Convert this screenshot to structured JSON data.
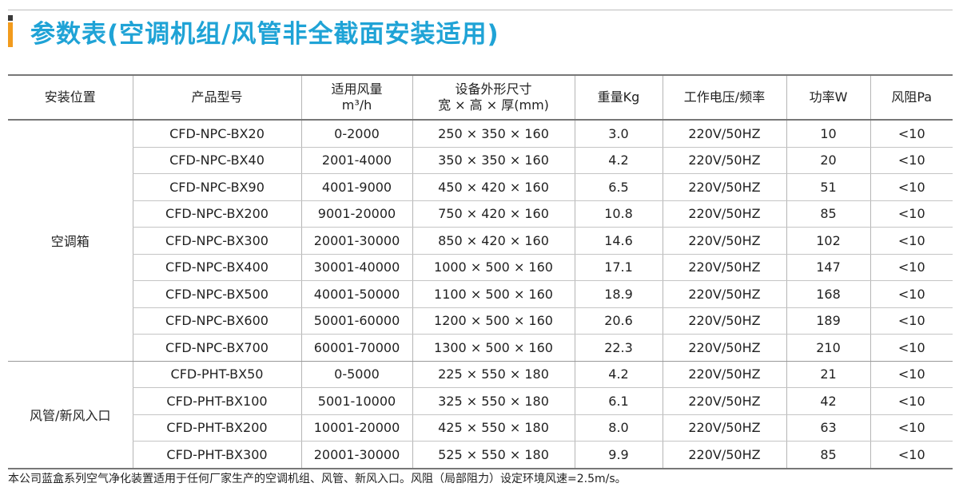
{
  "title": "参数表(空调机组/风管非全截面安装适用)",
  "colors": {
    "title": "#1fa3d6",
    "accent": "#f29b1d",
    "accent_dark": "#3a3a3a"
  },
  "table": {
    "headers": {
      "location": "安装位置",
      "model": "产品型号",
      "airflow_line1": "适用风量",
      "airflow_line2": "m³/h",
      "dimensions_line1": "设备外形尺寸",
      "dimensions_line2": "宽 × 高 × 厚(mm)",
      "weight": "重量Kg",
      "voltage": "工作电压/频率",
      "power": "功率W",
      "resistance": "风阻Pa"
    },
    "groups": [
      {
        "location": "空调箱",
        "rows": [
          {
            "model": "CFD-NPC-BX20",
            "airflow": "0-2000",
            "dimensions": "250 × 350 × 160",
            "weight": "3.0",
            "voltage": "220V/50HZ",
            "power": "10",
            "resistance": "<10"
          },
          {
            "model": "CFD-NPC-BX40",
            "airflow": "2001-4000",
            "dimensions": "350 × 350 × 160",
            "weight": "4.2",
            "voltage": "220V/50HZ",
            "power": "20",
            "resistance": "<10"
          },
          {
            "model": "CFD-NPC-BX90",
            "airflow": "4001-9000",
            "dimensions": "450 × 420 × 160",
            "weight": "6.5",
            "voltage": "220V/50HZ",
            "power": "51",
            "resistance": "<10"
          },
          {
            "model": "CFD-NPC-BX200",
            "airflow": "9001-20000",
            "dimensions": "750 × 420 × 160",
            "weight": "10.8",
            "voltage": "220V/50HZ",
            "power": "85",
            "resistance": "<10"
          },
          {
            "model": "CFD-NPC-BX300",
            "airflow": "20001-30000",
            "dimensions": "850 × 420 × 160",
            "weight": "14.6",
            "voltage": "220V/50HZ",
            "power": "102",
            "resistance": "<10"
          },
          {
            "model": "CFD-NPC-BX400",
            "airflow": "30001-40000",
            "dimensions": "1000 × 500 × 160",
            "weight": "17.1",
            "voltage": "220V/50HZ",
            "power": "147",
            "resistance": "<10"
          },
          {
            "model": "CFD-NPC-BX500",
            "airflow": "40001-50000",
            "dimensions": "1100 × 500 × 160",
            "weight": "18.9",
            "voltage": "220V/50HZ",
            "power": "168",
            "resistance": "<10"
          },
          {
            "model": "CFD-NPC-BX600",
            "airflow": "50001-60000",
            "dimensions": "1200 × 500 × 160",
            "weight": "20.6",
            "voltage": "220V/50HZ",
            "power": "189",
            "resistance": "<10"
          },
          {
            "model": "CFD-NPC-BX700",
            "airflow": "60001-70000",
            "dimensions": "1300 × 500 × 160",
            "weight": "22.3",
            "voltage": "220V/50HZ",
            "power": "210",
            "resistance": "<10"
          }
        ]
      },
      {
        "location": "风管/新风入口",
        "rows": [
          {
            "model": "CFD-PHT-BX50",
            "airflow": "0-5000",
            "dimensions": "225 × 550 × 180",
            "weight": "4.2",
            "voltage": "220V/50HZ",
            "power": "21",
            "resistance": "<10"
          },
          {
            "model": "CFD-PHT-BX100",
            "airflow": "5001-10000",
            "dimensions": "325 × 550 × 180",
            "weight": "6.1",
            "voltage": "220V/50HZ",
            "power": "42",
            "resistance": "<10"
          },
          {
            "model": "CFD-PHT-BX200",
            "airflow": "10001-20000",
            "dimensions": "425 × 550 × 180",
            "weight": "8.0",
            "voltage": "220V/50HZ",
            "power": "63",
            "resistance": "<10"
          },
          {
            "model": "CFD-PHT-BX300",
            "airflow": "20001-30000",
            "dimensions": "525 × 550 × 180",
            "weight": "9.9",
            "voltage": "220V/50HZ",
            "power": "85",
            "resistance": "<10"
          }
        ]
      }
    ]
  },
  "footnote": "本公司蓝盒系列空气净化装置适用于任何厂家生产的空调机组、风管、新风入口。风阻（局部阻力）设定环境风速=2.5m/s。"
}
